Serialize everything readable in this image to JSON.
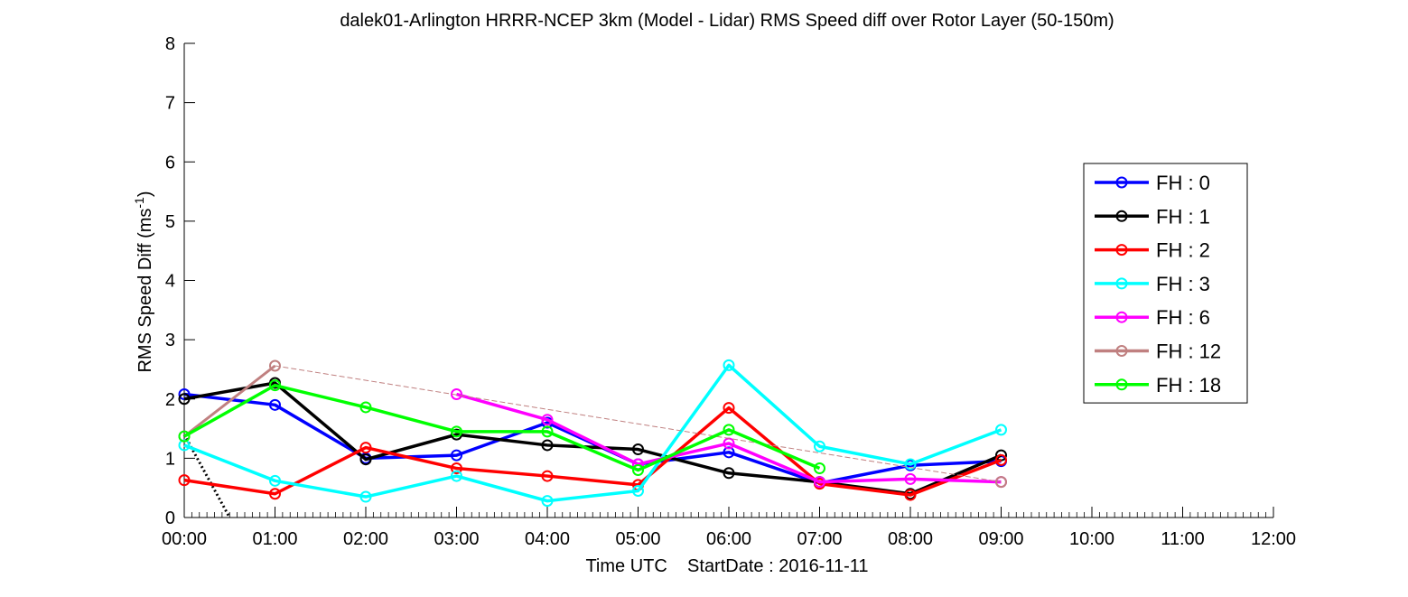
{
  "chart_data": {
    "type": "line",
    "title": "dalek01-Arlington HRRR-NCEP 3km (Model - Lidar) RMS Speed diff over Rotor Layer (50-150m)",
    "ylabel_main": "RMS Speed Diff (ms",
    "ylabel_sup": "-1",
    "ylabel_close": ")",
    "xlabel": "Time UTC    StartDate : 2016-11-11",
    "ylim": [
      0,
      8
    ],
    "xlim": [
      0,
      12
    ],
    "yticks": [
      "0",
      "1",
      "2",
      "3",
      "4",
      "5",
      "6",
      "7",
      "8"
    ],
    "xticks": [
      "00:00",
      "01:00",
      "02:00",
      "03:00",
      "04:00",
      "05:00",
      "06:00",
      "07:00",
      "08:00",
      "09:00",
      "10:00",
      "11:00",
      "12:00"
    ],
    "grid": false,
    "legend_position": "right",
    "series": [
      {
        "name": "FH : 0",
        "color": "#0000ff",
        "x": [
          0,
          1,
          2,
          3,
          4,
          5,
          6,
          7,
          8,
          9
        ],
        "y": [
          2.08,
          1.9,
          1.0,
          1.05,
          1.6,
          0.9,
          1.1,
          0.58,
          0.88,
          0.95
        ]
      },
      {
        "name": "FH : 1",
        "color": "#000000",
        "x": [
          0,
          1,
          2,
          3,
          4,
          5,
          6,
          7,
          8,
          9
        ],
        "y": [
          2.0,
          2.27,
          0.98,
          1.4,
          1.22,
          1.15,
          0.75,
          0.6,
          0.4,
          1.05
        ]
      },
      {
        "name": "FH : 2",
        "color": "#ff0000",
        "x": [
          0,
          1,
          2,
          3,
          4,
          5,
          6,
          7,
          8,
          9
        ],
        "y": [
          0.63,
          0.4,
          1.18,
          0.83,
          0.7,
          0.55,
          1.85,
          0.57,
          0.38,
          0.97
        ]
      },
      {
        "name": "FH : 3",
        "color": "#00ffff",
        "x": [
          0,
          1,
          2,
          3,
          4,
          5,
          6,
          7,
          8,
          9
        ],
        "y": [
          1.22,
          0.62,
          0.35,
          0.7,
          0.28,
          0.45,
          2.57,
          1.2,
          0.9,
          1.48
        ]
      },
      {
        "name": "FH : 6",
        "color": "#ff00ff",
        "x": [
          3,
          4,
          5,
          6,
          7,
          8,
          9
        ],
        "y": [
          2.08,
          1.65,
          0.9,
          1.25,
          0.6,
          0.65,
          0.6
        ]
      },
      {
        "name": "FH : 12",
        "color": "#c08080",
        "x": [
          0,
          1,
          9
        ],
        "y": [
          1.37,
          2.56,
          0.6
        ]
      },
      {
        "name": "FH : 18",
        "color": "#00ff00",
        "x": [
          0,
          1,
          2,
          3,
          4,
          5,
          6,
          7
        ],
        "y": [
          1.37,
          2.23,
          1.86,
          1.45,
          1.45,
          0.8,
          1.48,
          0.83
        ]
      }
    ],
    "extra_line": {
      "style": "dotted",
      "color": "#000000",
      "x": [
        0.0,
        0.5
      ],
      "y": [
        1.4,
        0.0
      ]
    }
  }
}
